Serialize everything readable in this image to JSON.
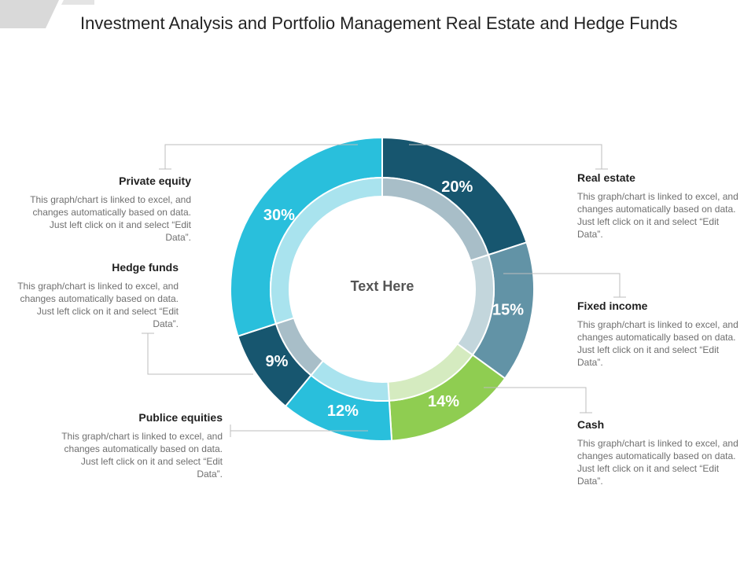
{
  "title": "Investment Analysis and Portfolio Management Real Estate and Hedge Funds",
  "colors": {
    "real_estate": "#17566f",
    "fixed_income": "#6293a6",
    "cash": "#8fcd51",
    "public_equities": "#29bfdc",
    "hedge_funds": "#17566f",
    "private_equity": "#29bfdc"
  },
  "chart_data": {
    "type": "pie",
    "variant": "donut",
    "center_text": "Text Here",
    "categories": [
      "Real estate",
      "Fixed income",
      "Cash",
      "Publice equities",
      "Hedge funds",
      "Private equity"
    ],
    "values": [
      20,
      15,
      14,
      12,
      9,
      30
    ],
    "labels": [
      "20%",
      "15%",
      "14%",
      "12%",
      "9%",
      "30%"
    ]
  },
  "callouts": [
    {
      "title": "Real estate",
      "desc": "This graph/chart is linked to excel, and changes automatically based on data. Just left click on it and select “Edit Data”."
    },
    {
      "title": "Fixed income",
      "desc": "This graph/chart is linked to excel, and changes automatically based on data. Just left click on it and select “Edit Data”."
    },
    {
      "title": "Cash",
      "desc": "This graph/chart is linked to excel, and changes automatically based on data. Just left click on it and select “Edit Data”."
    },
    {
      "title": "Publice equities",
      "desc": "This graph/chart is linked to excel, and changes automatically based on data. Just left click on it and select “Edit Data”."
    },
    {
      "title": "Hedge funds",
      "desc": "This graph/chart is linked to excel, and changes automatically based on data. Just left click on it and select “Edit Data”."
    },
    {
      "title": "Private equity",
      "desc": "This graph/chart is linked to excel, and changes automatically based on data. Just left click on it and select “Edit Data”."
    }
  ]
}
